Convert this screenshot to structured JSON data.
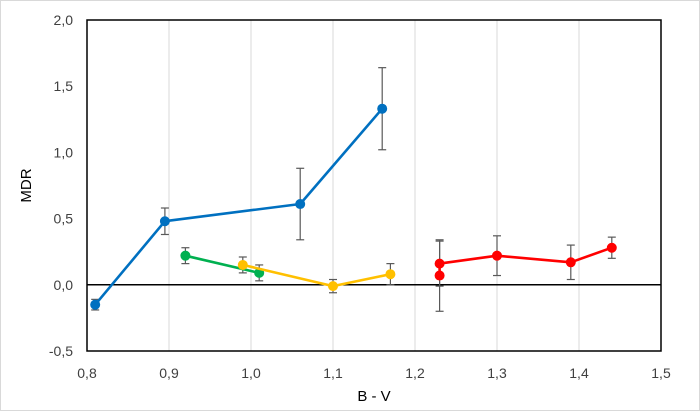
{
  "chart_data": {
    "type": "line",
    "xlabel": "B - V",
    "ylabel": "MDR",
    "xlim": [
      0.8,
      1.5
    ],
    "ylim": [
      -0.5,
      2.0
    ],
    "x_ticks": [
      "0,8",
      "0,9",
      "1,0",
      "1,1",
      "1,2",
      "1,3",
      "1,4",
      "1,5"
    ],
    "y_ticks": [
      "-0,5",
      "0,0",
      "0,5",
      "1,0",
      "1,5",
      "2,0"
    ],
    "grid": "vertical",
    "legend": "none",
    "series": [
      {
        "color": "#0070c0",
        "points": [
          {
            "x": 0.81,
            "y": -0.15,
            "err": 0.04
          },
          {
            "x": 0.895,
            "y": 0.48,
            "err": 0.1
          },
          {
            "x": 1.06,
            "y": 0.61,
            "err": 0.27
          },
          {
            "x": 1.16,
            "y": 1.33,
            "err": 0.31
          }
        ]
      },
      {
        "color": "#00b050",
        "points": [
          {
            "x": 0.92,
            "y": 0.22,
            "err": 0.06
          },
          {
            "x": 1.01,
            "y": 0.09,
            "err": 0.06
          }
        ]
      },
      {
        "color": "#ffc000",
        "points": [
          {
            "x": 0.99,
            "y": 0.15,
            "err": 0.06
          },
          {
            "x": 1.1,
            "y": -0.01,
            "err": 0.05
          },
          {
            "x": 1.17,
            "y": 0.08,
            "err": 0.08
          }
        ]
      },
      {
        "color": "#ff0000",
        "points": [
          {
            "x": 1.23,
            "y": 0.07,
            "err": 0.27
          },
          {
            "x": 1.23,
            "y": 0.16,
            "err": 0.17
          },
          {
            "x": 1.3,
            "y": 0.22,
            "err": 0.15
          },
          {
            "x": 1.39,
            "y": 0.17,
            "err": 0.13
          },
          {
            "x": 1.44,
            "y": 0.28,
            "err": 0.08
          }
        ]
      }
    ]
  }
}
